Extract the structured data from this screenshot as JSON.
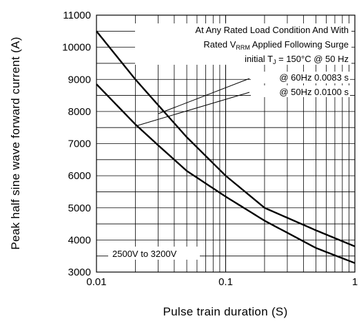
{
  "chart_data": {
    "type": "line",
    "xscale": "log",
    "xlim": [
      0.01,
      1
    ],
    "ylim": [
      3000,
      11000
    ],
    "grid": true,
    "xlabel": "Pulse train duration (S)",
    "ylabel": "Peak half sine wave forward current (A)",
    "x_ticks": [
      "0.01",
      "0.1",
      "1"
    ],
    "y_ticks": [
      "3000",
      "4000",
      "5000",
      "6000",
      "7000",
      "8000",
      "9000",
      "10000",
      "11000"
    ],
    "x_tick_values": [
      0.01,
      0.1,
      1
    ],
    "y_tick_values": [
      3000,
      4000,
      5000,
      6000,
      7000,
      8000,
      9000,
      10000,
      11000
    ],
    "series": [
      {
        "x": [
          0.01,
          0.02,
          0.03,
          0.05,
          0.1,
          0.2,
          0.5,
          1
        ],
        "y": [
          10500,
          9000,
          8200,
          7200,
          6000,
          5000,
          4300,
          3800
        ]
      },
      {
        "x": [
          0.01,
          0.02,
          0.03,
          0.05,
          0.1,
          0.2,
          0.5,
          1
        ],
        "y": [
          8850,
          7600,
          6950,
          6150,
          5350,
          4600,
          3750,
          3280
        ]
      }
    ],
    "annotations": {
      "line1": "At Any Rated Load Condition And With",
      "line2_pre": "Rated V",
      "line2_sub": "RRM",
      "line2_post": " Applied Following Surge",
      "line3_pre": "initial T",
      "line3_sub": "J",
      "line3_post": " = 150°C @ 50 Hz",
      "pointer60": "@ 60Hz 0.0083 s",
      "pointer50": "@ 50Hz 0.0100 s",
      "voltage_range": "2500V to 3200V"
    }
  }
}
